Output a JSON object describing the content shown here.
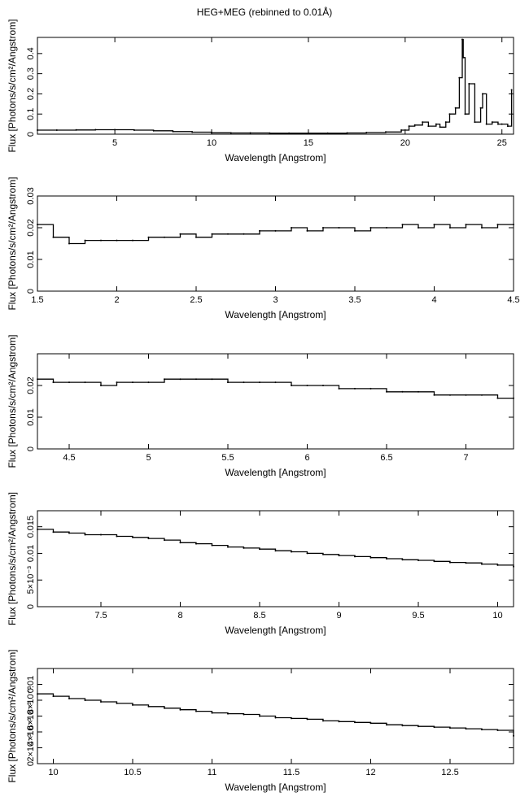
{
  "figure": {
    "title": "HEG+MEG (rebinned to 0.01Å)"
  },
  "chart_data": [
    {
      "type": "line",
      "xlabel": "Wavelength [Angstrom]",
      "ylabel": "Flux [Photons/s/cm²/Angstrom]",
      "xlim": [
        1.0,
        25.6
      ],
      "ylim": [
        0,
        0.48
      ],
      "xticks": [
        5,
        10,
        15,
        20,
        25
      ],
      "xtick_labels": [
        "5",
        "10",
        "15",
        "20",
        "25"
      ],
      "yticks": [
        0,
        0.1,
        0.2,
        0.3,
        0.4
      ],
      "ytick_labels": [
        "0",
        "0.1",
        "0.2",
        "0.3",
        "0.4"
      ],
      "series": [
        {
          "x": [
            1.0,
            2.0,
            3.0,
            4.0,
            5.0,
            6.0,
            7.0,
            8.0,
            9.0,
            10.0,
            11.0,
            12.0,
            13.0,
            14.0,
            15.0,
            16.0,
            17.0,
            18.0,
            19.0,
            19.8,
            20.2,
            20.5,
            20.9,
            21.2,
            21.6,
            21.8,
            22.1,
            22.3,
            22.6,
            22.8,
            22.95,
            23.0,
            23.1,
            23.3,
            23.6,
            23.9,
            24.0,
            24.2,
            24.5,
            24.8,
            25.0,
            25.3,
            25.5
          ],
          "y": [
            0.02,
            0.02,
            0.021,
            0.022,
            0.022,
            0.02,
            0.017,
            0.013,
            0.01,
            0.007,
            0.006,
            0.006,
            0.005,
            0.005,
            0.005,
            0.005,
            0.006,
            0.008,
            0.011,
            0.02,
            0.04,
            0.045,
            0.06,
            0.04,
            0.05,
            0.035,
            0.06,
            0.1,
            0.13,
            0.28,
            0.47,
            0.38,
            0.1,
            0.25,
            0.06,
            0.13,
            0.2,
            0.05,
            0.06,
            0.05,
            0.05,
            0.04,
            0.22
          ]
        }
      ]
    },
    {
      "type": "line",
      "xlabel": "Wavelength [Angstrom]",
      "ylabel": "Flux [Photons/s/cm²/Angstrom]",
      "xlim": [
        1.5,
        4.5
      ],
      "ylim": [
        0,
        0.03
      ],
      "xticks": [
        1.5,
        2,
        2.5,
        3,
        3.5,
        4,
        4.5
      ],
      "xtick_labels": [
        "1.5",
        "2",
        "2.5",
        "3",
        "3.5",
        "4",
        "4.5"
      ],
      "yticks": [
        0,
        0.01,
        0.02,
        0.03
      ],
      "ytick_labels": [
        "0",
        "0.01",
        "0.02",
        "0.03"
      ],
      "series": [
        {
          "x": [
            1.5,
            1.6,
            1.7,
            1.8,
            1.9,
            2.0,
            2.1,
            2.2,
            2.3,
            2.4,
            2.5,
            2.6,
            2.7,
            2.8,
            2.9,
            3.0,
            3.1,
            3.2,
            3.3,
            3.4,
            3.5,
            3.6,
            3.7,
            3.8,
            3.9,
            4.0,
            4.1,
            4.2,
            4.3,
            4.4,
            4.5
          ],
          "y": [
            0.021,
            0.017,
            0.015,
            0.016,
            0.016,
            0.016,
            0.016,
            0.017,
            0.017,
            0.018,
            0.017,
            0.018,
            0.018,
            0.018,
            0.019,
            0.019,
            0.02,
            0.019,
            0.02,
            0.02,
            0.019,
            0.02,
            0.02,
            0.021,
            0.02,
            0.021,
            0.02,
            0.021,
            0.02,
            0.021,
            0.021
          ]
        }
      ]
    },
    {
      "type": "line",
      "xlabel": "Wavelength [Angstrom]",
      "ylabel": "Flux [Photons/s/cm²/Angstrom]",
      "xlim": [
        4.3,
        7.3
      ],
      "ylim": [
        0,
        0.03
      ],
      "xticks": [
        4.5,
        5,
        5.5,
        6,
        6.5,
        7
      ],
      "xtick_labels": [
        "4.5",
        "5",
        "5.5",
        "6",
        "6.5",
        "7"
      ],
      "yticks": [
        0,
        0.01,
        0.02
      ],
      "ytick_labels": [
        "0",
        "0.01",
        "0.02"
      ],
      "series": [
        {
          "x": [
            4.3,
            4.4,
            4.5,
            4.6,
            4.7,
            4.8,
            4.9,
            5.0,
            5.1,
            5.2,
            5.3,
            5.4,
            5.5,
            5.6,
            5.7,
            5.8,
            5.9,
            6.0,
            6.1,
            6.2,
            6.3,
            6.4,
            6.5,
            6.6,
            6.7,
            6.8,
            6.9,
            7.0,
            7.1,
            7.2,
            7.3
          ],
          "y": [
            0.022,
            0.021,
            0.021,
            0.021,
            0.02,
            0.021,
            0.021,
            0.021,
            0.022,
            0.022,
            0.022,
            0.022,
            0.021,
            0.021,
            0.021,
            0.021,
            0.02,
            0.02,
            0.02,
            0.019,
            0.019,
            0.019,
            0.018,
            0.018,
            0.018,
            0.017,
            0.017,
            0.017,
            0.017,
            0.016,
            0.016
          ]
        }
      ]
    },
    {
      "type": "line",
      "xlabel": "Wavelength [Angstrom]",
      "ylabel": "Flux [Photons/s/cm²/Angstrom]",
      "xlim": [
        7.1,
        10.1
      ],
      "ylim": [
        0,
        0.018
      ],
      "xticks": [
        7.5,
        8,
        8.5,
        9,
        9.5,
        10
      ],
      "xtick_labels": [
        "7.5",
        "8",
        "8.5",
        "9",
        "9.5",
        "10"
      ],
      "yticks": [
        0,
        0.005,
        0.01,
        0.015
      ],
      "ytick_labels": [
        "0",
        "5×10⁻³",
        "0.01",
        "0.015"
      ],
      "series": [
        {
          "x": [
            7.1,
            7.2,
            7.3,
            7.4,
            7.5,
            7.6,
            7.7,
            7.8,
            7.9,
            8.0,
            8.1,
            8.2,
            8.3,
            8.4,
            8.5,
            8.6,
            8.7,
            8.8,
            8.9,
            9.0,
            9.1,
            9.2,
            9.3,
            9.4,
            9.5,
            9.6,
            9.7,
            9.8,
            9.9,
            10.0,
            10.1
          ],
          "y": [
            0.0145,
            0.014,
            0.0138,
            0.0135,
            0.0135,
            0.0132,
            0.013,
            0.0128,
            0.0125,
            0.012,
            0.0118,
            0.0115,
            0.0112,
            0.011,
            0.0108,
            0.0105,
            0.0103,
            0.01,
            0.0098,
            0.0096,
            0.0094,
            0.0092,
            0.009,
            0.0088,
            0.0087,
            0.0085,
            0.0083,
            0.0082,
            0.008,
            0.0078,
            0.0075
          ]
        }
      ]
    },
    {
      "type": "line",
      "xlabel": "Wavelength [Angstrom]",
      "ylabel": "Flux [Photons/s/cm²/Angstrom]",
      "xlim": [
        9.9,
        12.9
      ],
      "ylim": [
        0,
        0.012
      ],
      "xticks": [
        10,
        10.5,
        11,
        11.5,
        12,
        12.5
      ],
      "xtick_labels": [
        "10",
        "10.5",
        "11",
        "11.5",
        "12",
        "12.5"
      ],
      "yticks": [
        0,
        0.002,
        0.004,
        0.006,
        0.008,
        0.01
      ],
      "ytick_labels": [
        "0",
        "2×10⁻³",
        "4×10⁻³",
        "6×10⁻³",
        "8×10⁻³",
        "0.01"
      ],
      "series": [
        {
          "x": [
            9.9,
            10.0,
            10.1,
            10.2,
            10.3,
            10.4,
            10.5,
            10.6,
            10.7,
            10.8,
            10.9,
            11.0,
            11.1,
            11.2,
            11.3,
            11.4,
            11.5,
            11.6,
            11.7,
            11.8,
            11.9,
            12.0,
            12.1,
            12.2,
            12.3,
            12.4,
            12.5,
            12.6,
            12.7,
            12.8,
            12.9
          ],
          "y": [
            0.0088,
            0.0085,
            0.0082,
            0.008,
            0.0078,
            0.0076,
            0.0074,
            0.0072,
            0.007,
            0.0068,
            0.0066,
            0.0064,
            0.0063,
            0.0062,
            0.006,
            0.0058,
            0.0057,
            0.0056,
            0.0054,
            0.0053,
            0.0052,
            0.0051,
            0.0049,
            0.0048,
            0.0047,
            0.0046,
            0.0045,
            0.0044,
            0.0043,
            0.0042,
            0.0035
          ]
        }
      ]
    }
  ]
}
